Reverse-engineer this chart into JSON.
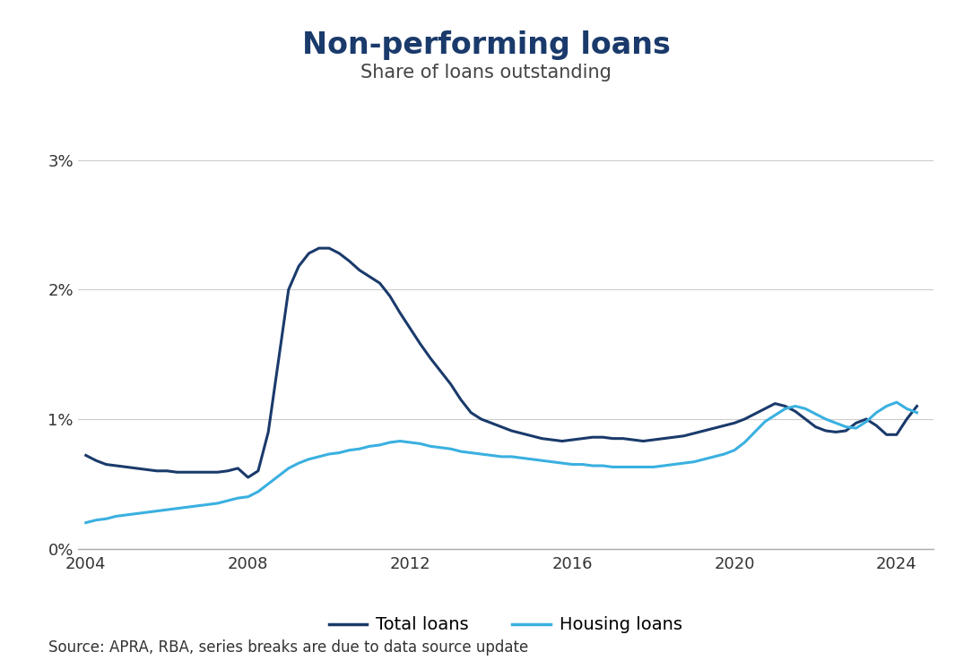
{
  "title": "Non-performing loans",
  "subtitle": "Share of loans outstanding",
  "title_color": "#1a3a6b",
  "subtitle_color": "#444444",
  "source_text": "Source: APRA, RBA, series breaks are due to data source update",
  "total_loans_color": "#1a3a6b",
  "housing_loans_color": "#3ab0e0",
  "background_color": "#ffffff",
  "ylim": [
    0,
    0.031
  ],
  "yticks": [
    0,
    0.01,
    0.02,
    0.03
  ],
  "ytick_labels": [
    "0%",
    "1%",
    "2%",
    "3%"
  ],
  "xtick_years": [
    2004,
    2008,
    2012,
    2016,
    2020,
    2024
  ],
  "legend_labels": [
    "Total loans",
    "Housing loans"
  ],
  "total_loans": {
    "dates": [
      2004.0,
      2004.25,
      2004.5,
      2004.75,
      2005.0,
      2005.25,
      2005.5,
      2005.75,
      2006.0,
      2006.25,
      2006.5,
      2006.75,
      2007.0,
      2007.25,
      2007.5,
      2007.75,
      2008.0,
      2008.25,
      2008.5,
      2008.75,
      2009.0,
      2009.25,
      2009.5,
      2009.75,
      2010.0,
      2010.25,
      2010.5,
      2010.75,
      2011.0,
      2011.25,
      2011.5,
      2011.75,
      2012.0,
      2012.25,
      2012.5,
      2012.75,
      2013.0,
      2013.25,
      2013.5,
      2013.75,
      2014.0,
      2014.25,
      2014.5,
      2014.75,
      2015.0,
      2015.25,
      2015.5,
      2015.75,
      2016.0,
      2016.25,
      2016.5,
      2016.75,
      2017.0,
      2017.25,
      2017.5,
      2017.75,
      2018.0,
      2018.25,
      2018.5,
      2018.75,
      2019.0,
      2019.25,
      2019.5,
      2019.75,
      2020.0,
      2020.25,
      2020.5,
      2020.75,
      2021.0,
      2021.25,
      2021.5,
      2021.75,
      2022.0,
      2022.25,
      2022.5,
      2022.75,
      2023.0,
      2023.25,
      2023.5,
      2023.75,
      2024.0,
      2024.25,
      2024.5
    ],
    "values": [
      0.0072,
      0.0068,
      0.0065,
      0.0064,
      0.0063,
      0.0062,
      0.0061,
      0.006,
      0.006,
      0.0059,
      0.0059,
      0.0059,
      0.0059,
      0.0059,
      0.006,
      0.0062,
      0.0055,
      0.006,
      0.009,
      0.0145,
      0.02,
      0.0218,
      0.0228,
      0.0232,
      0.0232,
      0.0228,
      0.0222,
      0.0215,
      0.021,
      0.0205,
      0.0195,
      0.0182,
      0.017,
      0.0158,
      0.0147,
      0.0137,
      0.0127,
      0.0115,
      0.0105,
      0.01,
      0.0097,
      0.0094,
      0.0091,
      0.0089,
      0.0087,
      0.0085,
      0.0084,
      0.0083,
      0.0084,
      0.0085,
      0.0086,
      0.0086,
      0.0085,
      0.0085,
      0.0084,
      0.0083,
      0.0084,
      0.0085,
      0.0086,
      0.0087,
      0.0089,
      0.0091,
      0.0093,
      0.0095,
      0.0097,
      0.01,
      0.0104,
      0.0108,
      0.0112,
      0.011,
      0.0106,
      0.01,
      0.0094,
      0.0091,
      0.009,
      0.0091,
      0.0097,
      0.01,
      0.0095,
      0.0088,
      0.0088,
      0.01,
      0.011
    ]
  },
  "housing_loans": {
    "dates": [
      2004.0,
      2004.25,
      2004.5,
      2004.75,
      2005.0,
      2005.25,
      2005.5,
      2005.75,
      2006.0,
      2006.25,
      2006.5,
      2006.75,
      2007.0,
      2007.25,
      2007.5,
      2007.75,
      2008.0,
      2008.25,
      2008.5,
      2008.75,
      2009.0,
      2009.25,
      2009.5,
      2009.75,
      2010.0,
      2010.25,
      2010.5,
      2010.75,
      2011.0,
      2011.25,
      2011.5,
      2011.75,
      2012.0,
      2012.25,
      2012.5,
      2012.75,
      2013.0,
      2013.25,
      2013.5,
      2013.75,
      2014.0,
      2014.25,
      2014.5,
      2014.75,
      2015.0,
      2015.25,
      2015.5,
      2015.75,
      2016.0,
      2016.25,
      2016.5,
      2016.75,
      2017.0,
      2017.25,
      2017.5,
      2017.75,
      2018.0,
      2018.25,
      2018.5,
      2018.75,
      2019.0,
      2019.25,
      2019.5,
      2019.75,
      2020.0,
      2020.25,
      2020.5,
      2020.75,
      2021.0,
      2021.25,
      2021.5,
      2021.75,
      2022.0,
      2022.25,
      2022.5,
      2022.75,
      2023.0,
      2023.25,
      2023.5,
      2023.75,
      2024.0,
      2024.25,
      2024.5
    ],
    "values": [
      0.002,
      0.0022,
      0.0023,
      0.0025,
      0.0026,
      0.0027,
      0.0028,
      0.0029,
      0.003,
      0.0031,
      0.0032,
      0.0033,
      0.0034,
      0.0035,
      0.0037,
      0.0039,
      0.004,
      0.0044,
      0.005,
      0.0056,
      0.0062,
      0.0066,
      0.0069,
      0.0071,
      0.0073,
      0.0074,
      0.0076,
      0.0077,
      0.0079,
      0.008,
      0.0082,
      0.0083,
      0.0082,
      0.0081,
      0.0079,
      0.0078,
      0.0077,
      0.0075,
      0.0074,
      0.0073,
      0.0072,
      0.0071,
      0.0071,
      0.007,
      0.0069,
      0.0068,
      0.0067,
      0.0066,
      0.0065,
      0.0065,
      0.0064,
      0.0064,
      0.0063,
      0.0063,
      0.0063,
      0.0063,
      0.0063,
      0.0064,
      0.0065,
      0.0066,
      0.0067,
      0.0069,
      0.0071,
      0.0073,
      0.0076,
      0.0082,
      0.009,
      0.0098,
      0.0103,
      0.0108,
      0.011,
      0.0108,
      0.0104,
      0.01,
      0.0097,
      0.0094,
      0.0093,
      0.0098,
      0.0105,
      0.011,
      0.0113,
      0.0108,
      0.0105
    ]
  }
}
